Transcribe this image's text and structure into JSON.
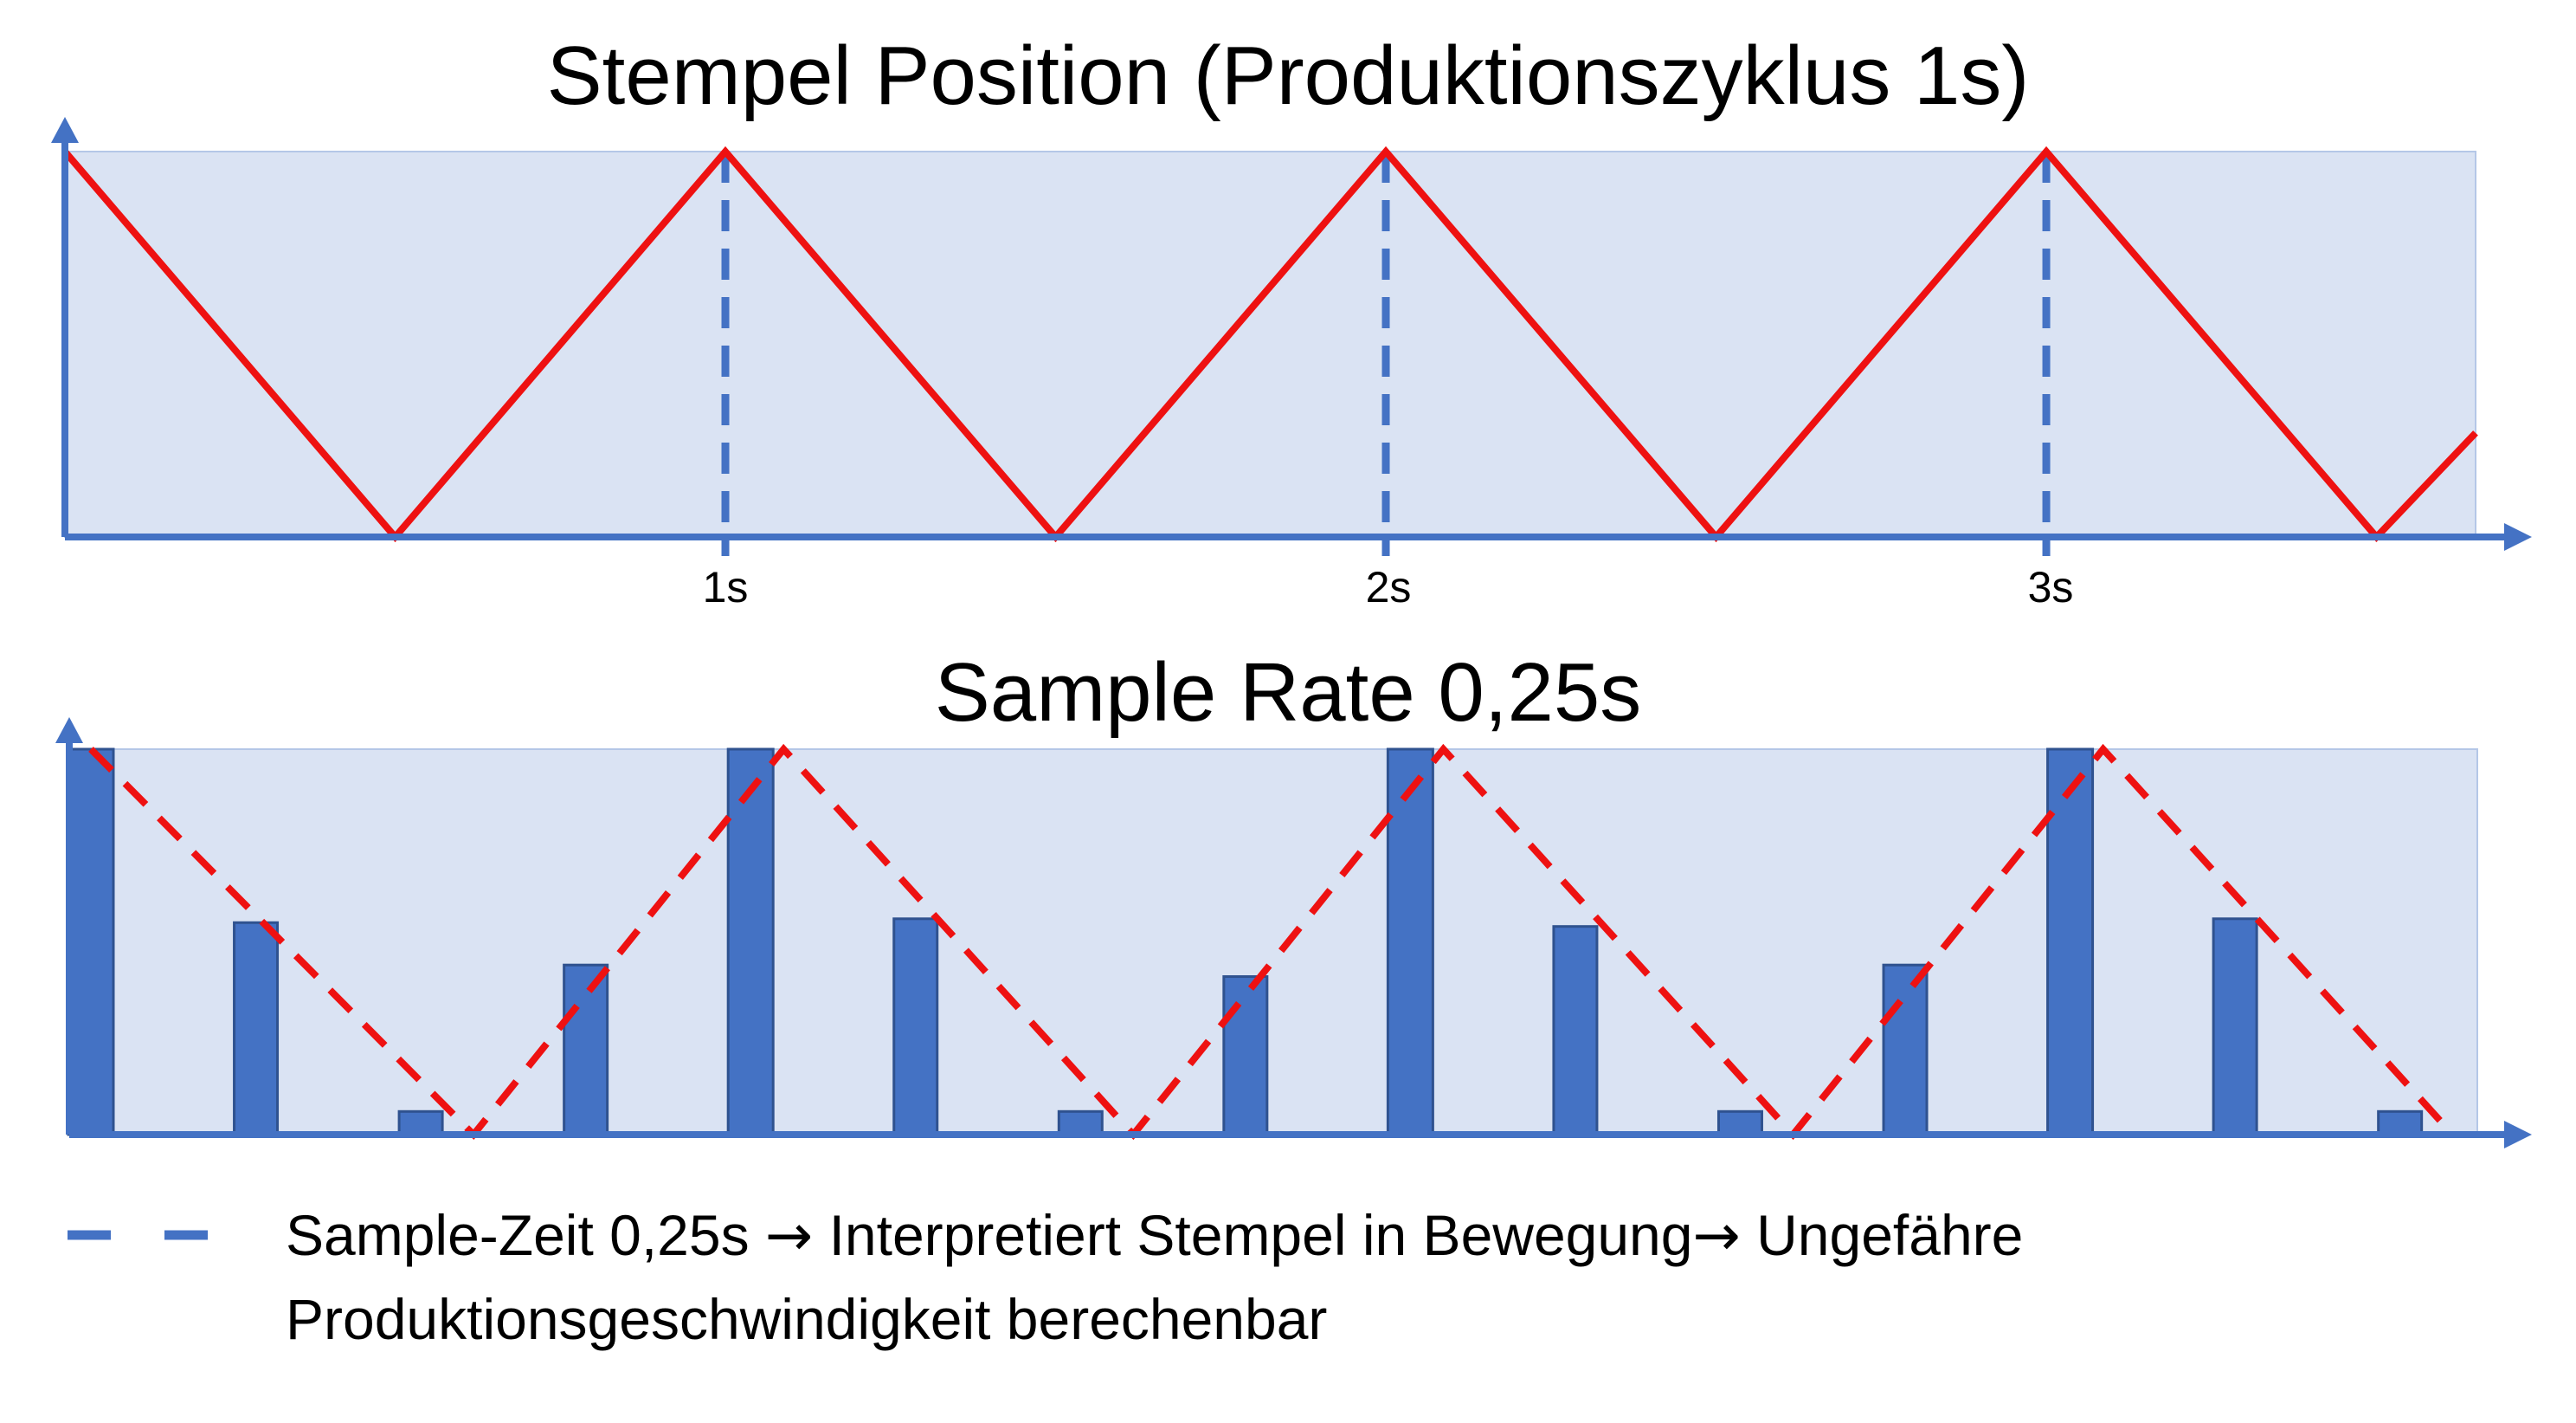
{
  "top_chart": {
    "title": "Stempel Position (Produktionszyklus 1s)",
    "ticks": [
      "1s",
      "2s",
      "3s"
    ]
  },
  "bottom_chart": {
    "title": "Sample Rate 0,25s"
  },
  "legend": {
    "part1": "Sample-Zeit 0,25s",
    "arrow1": "→",
    "part2": "Interpretiert Stempel in Bewegung",
    "arrow2": "→",
    "part3": "Ungefähre",
    "line2": "Produktionsgeschwindigkeit berechenbar"
  },
  "chart_data": [
    {
      "type": "line",
      "series": [
        {
          "x": [
            0,
            0.5,
            1,
            1.5,
            2,
            2.5,
            3,
            3.5,
            3.65
          ],
          "y": [
            1,
            0,
            1,
            0,
            1,
            0,
            1,
            0,
            0.27
          ]
        }
      ],
      "xlim": [
        0,
        3.65
      ],
      "ylim": [
        0,
        1
      ],
      "vertical_markers": [
        1,
        2,
        3
      ],
      "colors": {
        "line": "#ee1111",
        "markers": "#4472c4",
        "fill": "#dae3f3",
        "axis": "#4472c4"
      }
    },
    {
      "type": "bar",
      "x": [
        0,
        0.25,
        0.5,
        0.75,
        1,
        1.25,
        1.5,
        1.75,
        2,
        2.25,
        2.5,
        2.75,
        3,
        3.25,
        3.5
      ],
      "values": [
        1,
        0.55,
        0.06,
        0.44,
        1,
        0.56,
        0.06,
        0.41,
        1,
        0.54,
        0.06,
        0.44,
        1,
        0.56,
        0.06
      ],
      "reference_line": {
        "style": "dashed",
        "x": [
          0,
          0.58,
          1.05,
          1.58,
          2.05,
          2.58,
          3.05,
          3.58
        ],
        "y": [
          1,
          0,
          1,
          0,
          1,
          0,
          1,
          0
        ]
      },
      "xlim": [
        0,
        3.65
      ],
      "ylim": [
        0,
        1
      ],
      "colors": {
        "bars": "#4472c4",
        "bar_border": "#2f528f",
        "reference_line": "#ee1111",
        "fill": "#dae3f3",
        "axis": "#4472c4"
      }
    }
  ]
}
